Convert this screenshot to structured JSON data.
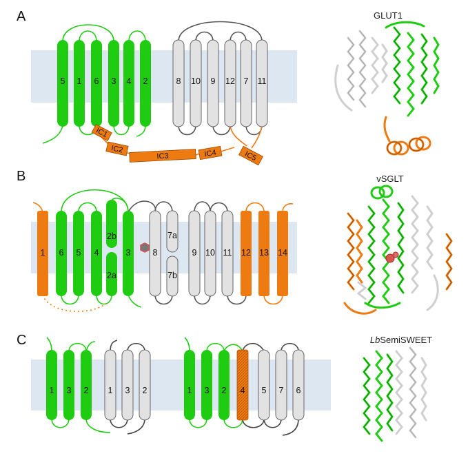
{
  "colors": {
    "membrane": "#dde7f1",
    "green": "#1fcc12",
    "gray": "#e2e2e2",
    "orange": "#ee7a12",
    "outline": "#555555",
    "loop_gray": "#444444",
    "ligand": "#d9534f"
  },
  "panels": [
    {
      "letter": "A",
      "structure_title": "GLUT1",
      "helices": [
        "5",
        "1",
        "6",
        "3",
        "4",
        "2",
        "8",
        "10",
        "9",
        "12",
        "7",
        "11"
      ],
      "intracellular_helices": [
        "IC1",
        "IC2",
        "IC3",
        "IC4",
        "IC5"
      ]
    },
    {
      "letter": "B",
      "structure_title": "vSGLT",
      "helices": [
        "1",
        "6",
        "5",
        "4",
        "2b",
        "2a",
        "3",
        "8",
        "7a",
        "7b",
        "9",
        "10",
        "11",
        "12",
        "13",
        "14"
      ]
    },
    {
      "letter": "C",
      "structure_title_italic": "Lb",
      "structure_title": "SemiSWEET",
      "helices_left": [
        "1",
        "3",
        "2",
        "1",
        "3",
        "2"
      ],
      "helices_right": [
        "1",
        "3",
        "2",
        "4",
        "5",
        "7",
        "6"
      ]
    }
  ]
}
